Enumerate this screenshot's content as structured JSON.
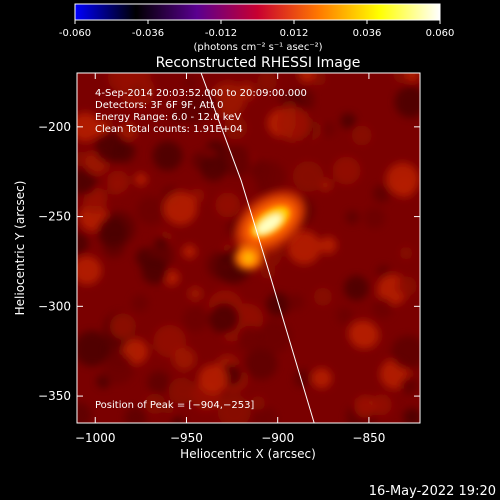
{
  "colorbar": {
    "ticks": [
      "-0.060",
      "-0.036",
      "-0.012",
      "0.012",
      "0.036",
      "0.060"
    ],
    "tick_values": [
      -0.06,
      -0.036,
      -0.012,
      0.012,
      0.036,
      0.06
    ],
    "range": [
      -0.06,
      0.06
    ],
    "unit_label": "(photons cm⁻² s⁻¹ asec⁻²)",
    "colormap": [
      "#0000ff",
      "#000000",
      "#5a0090",
      "#c80030",
      "#ff7800",
      "#ffff00",
      "#ffffff"
    ]
  },
  "chart_data": {
    "type": "heatmap",
    "title": "Reconstructed RHESSI Image",
    "xlabel": "Heliocentric X (arcsec)",
    "ylabel": "Heliocentric Y (arcsec)",
    "xlim": [
      -1010,
      -822
    ],
    "ylim": [
      -365,
      -170
    ],
    "xticks": [
      -1000,
      -950,
      -900,
      -850
    ],
    "yticks": [
      -350,
      -300,
      -250,
      -200
    ],
    "xtick_labels": [
      "−1000",
      "−950",
      "−900",
      "−850"
    ],
    "ytick_labels": [
      "−350",
      "−300",
      "−250",
      "−200"
    ],
    "info_lines": [
      "4-Sep-2014 20:03:52.000 to 20:09:00.000",
      "Detectors: 3F 6F 9F, Att 0",
      "Energy Range: 6.0 - 12.0 keV",
      "Clean     Total counts: 1.91E+04"
    ],
    "peak_label": "Position of Peak = [−904,−253]",
    "sources": [
      {
        "x": -904,
        "y": -253,
        "peak": 0.06
      },
      {
        "x": -916,
        "y": -273,
        "peak": 0.04
      }
    ],
    "limb_curve": [
      {
        "x": -942,
        "y": -170
      },
      {
        "x": -920,
        "y": -230
      },
      {
        "x": -905,
        "y": -280
      },
      {
        "x": -880,
        "y": -365
      }
    ],
    "timestamp": "16-May-2022 19:20"
  }
}
